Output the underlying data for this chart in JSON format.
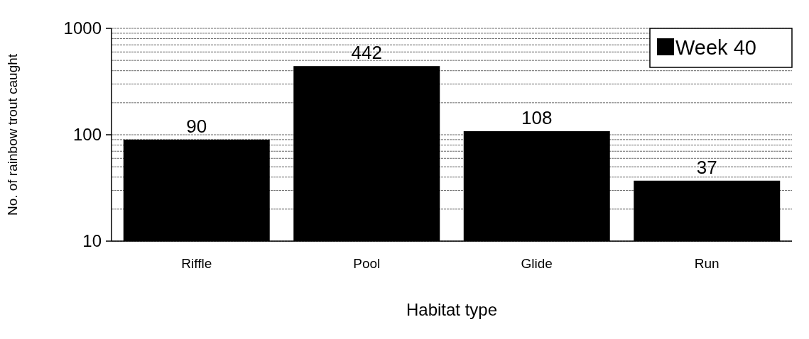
{
  "chart_data": {
    "type": "bar",
    "xlabel": "Habitat type",
    "ylabel": "No. of rainbow trout caught",
    "categories": [
      "Riffle",
      "Pool",
      "Glide",
      "Run"
    ],
    "series": [
      {
        "name": "Week 40",
        "color": "#000000",
        "values": [
          90,
          442,
          108,
          37
        ]
      }
    ],
    "log": true,
    "ylim": [
      10,
      1000
    ],
    "yticks": [
      10,
      {
        "value": 20,
        "label": null
      },
      {
        "value": 30,
        "label": null
      },
      {
        "value": 40,
        "label": null
      },
      {
        "value": 50,
        "label": null
      },
      {
        "value": 60,
        "label": null
      },
      {
        "value": 70,
        "label": null
      },
      {
        "value": 80,
        "label": null
      },
      {
        "value": 90,
        "label": null
      },
      100,
      {
        "value": 200,
        "label": null
      },
      {
        "value": 300,
        "label": null
      },
      {
        "value": 400,
        "label": null
      },
      {
        "value": 500,
        "label": null
      },
      {
        "value": 600,
        "label": null
      },
      {
        "value": 700,
        "label": null
      },
      {
        "value": 800,
        "label": null
      },
      {
        "value": 900,
        "label": null
      },
      1000
    ],
    "grid": "y",
    "legend": "top right",
    "data_labels": true
  }
}
